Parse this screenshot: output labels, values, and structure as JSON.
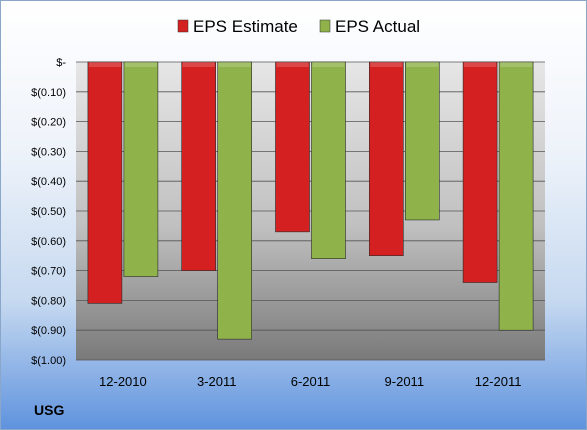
{
  "company": "USG",
  "chart_data": {
    "type": "bar",
    "categories": [
      "12-2010",
      "3-2011",
      "6-2011",
      "9-2011",
      "12-2011"
    ],
    "series": [
      {
        "name": "EPS Estimate",
        "values": [
          -0.81,
          -0.7,
          -0.57,
          -0.65,
          -0.74
        ],
        "color": "#d42020"
      },
      {
        "name": "EPS Actual",
        "values": [
          -0.72,
          -0.93,
          -0.66,
          -0.53,
          -0.9
        ],
        "color": "#8fb24a"
      }
    ],
    "y_ticks": [
      "$-",
      "$(0.10)",
      "$(0.20)",
      "$(0.30)",
      "$(0.40)",
      "$(0.50)",
      "$(0.60)",
      "$(0.70)",
      "$(0.80)",
      "$(0.90)",
      "$(1.00)"
    ],
    "ylim": [
      -1.0,
      0
    ],
    "grid": true,
    "legend_position": "top"
  }
}
